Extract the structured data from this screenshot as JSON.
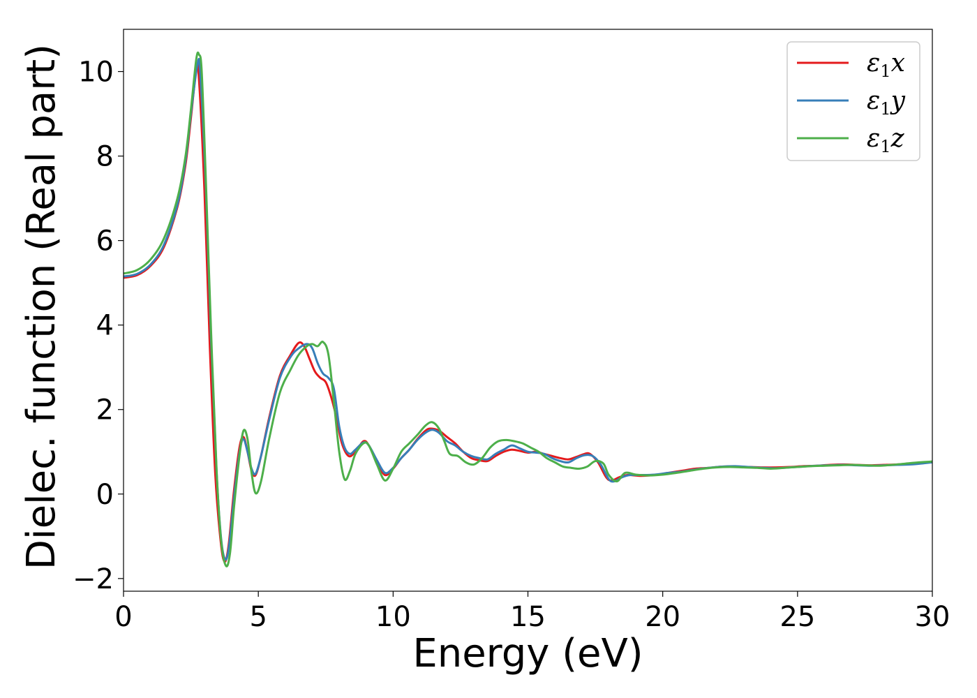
{
  "chart_data": {
    "type": "line",
    "title": "",
    "xlabel": "Energy (eV)",
    "ylabel": "Dielec. function (Real part)",
    "xlim": [
      0,
      30
    ],
    "ylim": [
      -2.3,
      11
    ],
    "xticks": [
      0,
      5,
      10,
      15,
      20,
      25,
      30
    ],
    "yticks": [
      -2,
      0,
      2,
      4,
      6,
      8,
      10
    ],
    "xtick_labels": [
      "0",
      "5",
      "10",
      "15",
      "20",
      "25",
      "30"
    ],
    "ytick_labels": [
      "−2",
      "0",
      "2",
      "4",
      "6",
      "8",
      "10"
    ],
    "grid": false,
    "legend_position": "top-right",
    "series": [
      {
        "name": "ε1x",
        "legend_base": "ε",
        "legend_sub": "1",
        "legend_suffix": "x",
        "color": "#e41a1c",
        "x": [
          0,
          0.5,
          1.0,
          1.5,
          2.0,
          2.3,
          2.5,
          2.7,
          2.8,
          3.0,
          3.2,
          3.4,
          3.6,
          3.75,
          3.9,
          4.1,
          4.3,
          4.45,
          4.6,
          4.75,
          4.9,
          5.1,
          5.4,
          5.8,
          6.2,
          6.5,
          6.7,
          6.9,
          7.1,
          7.3,
          7.5,
          7.7,
          7.9,
          8.1,
          8.35,
          8.6,
          8.9,
          9.1,
          9.4,
          9.7,
          10.0,
          10.3,
          10.6,
          10.9,
          11.2,
          11.4,
          11.7,
          12.0,
          12.3,
          12.6,
          12.9,
          13.2,
          13.5,
          13.8,
          14.1,
          14.4,
          14.7,
          15.0,
          15.3,
          15.6,
          15.9,
          16.2,
          16.5,
          16.8,
          17.1,
          17.3,
          17.6,
          17.9,
          18.1,
          18.4,
          18.7,
          19.2,
          19.7,
          20.2,
          20.7,
          21.2,
          21.7,
          22.2,
          22.7,
          23.2,
          23.7,
          24.2,
          24.7,
          25.2,
          25.7,
          26.2,
          26.7,
          27.2,
          27.7,
          28.2,
          28.7,
          29.2,
          29.7,
          30.0
        ],
        "values": [
          5.12,
          5.18,
          5.4,
          5.85,
          6.8,
          7.8,
          8.9,
          10.05,
          9.8,
          7.2,
          3.5,
          0.5,
          -1.1,
          -1.6,
          -1.2,
          0.1,
          1.1,
          1.35,
          1.0,
          0.55,
          0.45,
          0.9,
          1.8,
          2.8,
          3.3,
          3.58,
          3.5,
          3.2,
          2.9,
          2.75,
          2.65,
          2.3,
          1.8,
          1.2,
          0.9,
          1.0,
          1.25,
          1.15,
          0.75,
          0.45,
          0.6,
          0.85,
          1.05,
          1.3,
          1.5,
          1.55,
          1.5,
          1.35,
          1.2,
          1.0,
          0.85,
          0.8,
          0.78,
          0.9,
          1.0,
          1.05,
          1.02,
          0.98,
          1.0,
          0.95,
          0.9,
          0.85,
          0.82,
          0.88,
          0.95,
          0.95,
          0.75,
          0.4,
          0.32,
          0.4,
          0.45,
          0.43,
          0.45,
          0.5,
          0.55,
          0.6,
          0.62,
          0.65,
          0.65,
          0.64,
          0.63,
          0.63,
          0.64,
          0.66,
          0.67,
          0.69,
          0.7,
          0.69,
          0.68,
          0.69,
          0.7,
          0.72,
          0.74,
          0.76
        ]
      },
      {
        "name": "ε1y",
        "legend_base": "ε",
        "legend_sub": "1",
        "legend_suffix": "y",
        "color": "#377eb8",
        "x": [
          0,
          0.5,
          1.0,
          1.5,
          2.0,
          2.3,
          2.5,
          2.75,
          2.85,
          3.05,
          3.25,
          3.45,
          3.62,
          3.78,
          3.92,
          4.12,
          4.32,
          4.45,
          4.6,
          4.75,
          4.9,
          5.1,
          5.4,
          5.8,
          6.2,
          6.5,
          6.8,
          7.0,
          7.2,
          7.4,
          7.6,
          7.8,
          8.0,
          8.2,
          8.4,
          8.6,
          8.9,
          9.1,
          9.4,
          9.7,
          10.0,
          10.3,
          10.6,
          10.9,
          11.2,
          11.45,
          11.7,
          12.0,
          12.3,
          12.6,
          12.9,
          13.2,
          13.5,
          13.8,
          14.1,
          14.4,
          14.7,
          15.0,
          15.3,
          15.6,
          15.9,
          16.2,
          16.5,
          16.8,
          17.1,
          17.4,
          17.7,
          18.0,
          18.2,
          18.5,
          18.8,
          19.2,
          19.7,
          20.2,
          20.7,
          21.2,
          21.7,
          22.2,
          22.7,
          23.2,
          23.7,
          24.2,
          24.7,
          25.2,
          25.7,
          26.2,
          26.7,
          27.2,
          27.7,
          28.2,
          28.7,
          29.2,
          29.7,
          30.0
        ],
        "values": [
          5.15,
          5.21,
          5.43,
          5.9,
          6.85,
          7.9,
          9.0,
          10.2,
          9.9,
          7.3,
          3.6,
          0.55,
          -1.05,
          -1.55,
          -1.2,
          0.05,
          1.05,
          1.3,
          1.0,
          0.6,
          0.48,
          0.9,
          1.75,
          2.75,
          3.25,
          3.45,
          3.55,
          3.45,
          3.1,
          2.85,
          2.75,
          2.5,
          1.6,
          1.1,
          0.95,
          1.05,
          1.22,
          1.15,
          0.8,
          0.5,
          0.62,
          0.85,
          1.05,
          1.28,
          1.45,
          1.52,
          1.45,
          1.25,
          1.15,
          1.0,
          0.9,
          0.85,
          0.82,
          0.95,
          1.05,
          1.15,
          1.08,
          1.0,
          0.98,
          0.95,
          0.85,
          0.78,
          0.75,
          0.85,
          0.92,
          0.9,
          0.7,
          0.35,
          0.3,
          0.4,
          0.45,
          0.45,
          0.46,
          0.5,
          0.53,
          0.58,
          0.62,
          0.65,
          0.66,
          0.64,
          0.62,
          0.61,
          0.63,
          0.65,
          0.67,
          0.68,
          0.69,
          0.68,
          0.67,
          0.68,
          0.69,
          0.7,
          0.73,
          0.75
        ]
      },
      {
        "name": "ε1z",
        "legend_base": "ε",
        "legend_sub": "1",
        "legend_suffix": "z",
        "color": "#4daf4a",
        "x": [
          0,
          0.5,
          1.0,
          1.5,
          2.0,
          2.3,
          2.5,
          2.7,
          2.8,
          2.9,
          3.05,
          3.25,
          3.45,
          3.62,
          3.8,
          3.95,
          4.1,
          4.3,
          4.45,
          4.6,
          4.75,
          4.9,
          5.1,
          5.4,
          5.8,
          6.2,
          6.5,
          6.8,
          7.0,
          7.2,
          7.4,
          7.6,
          7.8,
          8.0,
          8.2,
          8.4,
          8.6,
          8.9,
          9.1,
          9.4,
          9.7,
          10.0,
          10.3,
          10.6,
          10.9,
          11.2,
          11.45,
          11.7,
          11.9,
          12.1,
          12.4,
          12.7,
          13.0,
          13.3,
          13.6,
          13.9,
          14.2,
          14.5,
          14.8,
          15.1,
          15.4,
          15.7,
          16.0,
          16.3,
          16.6,
          16.9,
          17.2,
          17.5,
          17.8,
          18.0,
          18.3,
          18.6,
          19.0,
          19.5,
          20.0,
          20.5,
          21.0,
          21.5,
          22.0,
          22.5,
          23.0,
          23.5,
          24.0,
          24.5,
          25.0,
          25.5,
          26.0,
          26.5,
          27.0,
          27.5,
          28.0,
          28.5,
          29.0,
          29.5,
          30.0
        ],
        "values": [
          5.22,
          5.3,
          5.55,
          6.05,
          7.0,
          8.0,
          9.1,
          10.3,
          10.4,
          10.0,
          7.5,
          3.8,
          0.6,
          -1.1,
          -1.7,
          -1.4,
          -0.3,
          0.9,
          1.5,
          1.3,
          0.5,
          0.02,
          0.3,
          1.3,
          2.4,
          2.95,
          3.3,
          3.5,
          3.55,
          3.5,
          3.6,
          3.3,
          2.2,
          1.0,
          0.35,
          0.55,
          0.95,
          1.2,
          1.15,
          0.7,
          0.32,
          0.6,
          1.0,
          1.2,
          1.4,
          1.62,
          1.7,
          1.55,
          1.25,
          0.95,
          0.9,
          0.75,
          0.7,
          0.85,
          1.1,
          1.25,
          1.28,
          1.25,
          1.2,
          1.1,
          1.0,
          0.85,
          0.75,
          0.65,
          0.62,
          0.6,
          0.65,
          0.78,
          0.72,
          0.45,
          0.3,
          0.5,
          0.46,
          0.44,
          0.46,
          0.5,
          0.55,
          0.6,
          0.63,
          0.64,
          0.63,
          0.62,
          0.6,
          0.62,
          0.64,
          0.66,
          0.67,
          0.68,
          0.69,
          0.68,
          0.67,
          0.69,
          0.72,
          0.75,
          0.77
        ]
      }
    ]
  }
}
